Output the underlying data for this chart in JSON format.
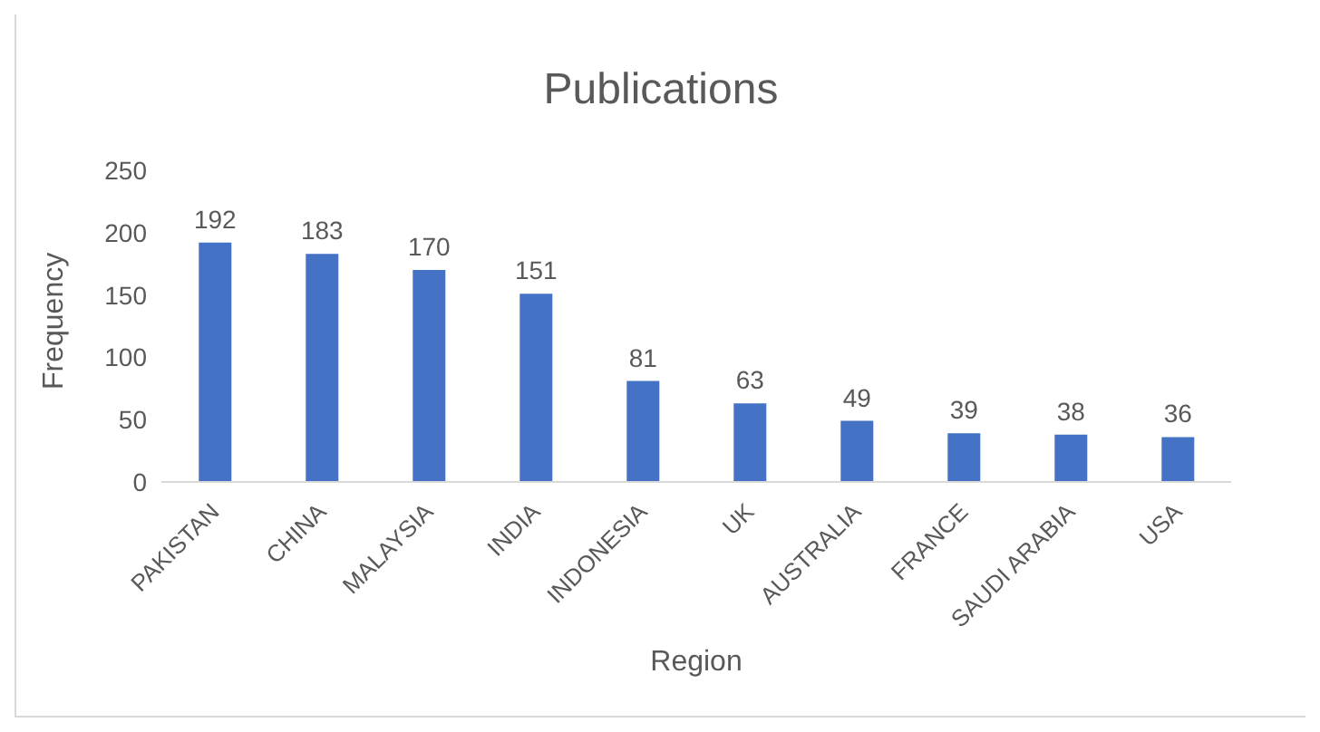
{
  "chart_data": {
    "type": "bar",
    "title": "Publications",
    "xlabel": "Region",
    "ylabel": "Frequency",
    "categories": [
      "PAKISTAN",
      "CHINA",
      "MALAYSIA",
      "INDIA",
      "INDONESIA",
      "UK",
      "AUSTRALIA",
      "FRANCE",
      "SAUDI ARABIA",
      "USA"
    ],
    "values": [
      192,
      183,
      170,
      151,
      81,
      63,
      49,
      39,
      38,
      36
    ],
    "color": "#4472c4",
    "ylim": [
      0,
      250
    ],
    "yticks": [
      0,
      50,
      100,
      150,
      200,
      250
    ],
    "grid": false,
    "data_labels": true
  }
}
